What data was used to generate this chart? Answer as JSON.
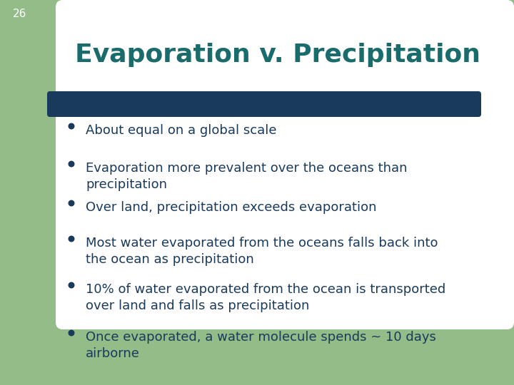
{
  "slide_number": "26",
  "title": "Evaporation v. Precipitation",
  "title_color": "#1a6b6b",
  "title_fontsize": 26,
  "bar_color": "#1a3a5c",
  "bullet_color": "#1a3a5c",
  "bullet_fontsize": 13,
  "background_color": "#ffffff",
  "left_panel_color": "#93bc88",
  "slide_number_color": "#ffffff",
  "slide_number_fontsize": 11,
  "bullet_points": [
    "About equal on a global scale",
    "Evaporation more prevalent over the oceans than\nprecipitation",
    "Over land, precipitation exceeds evaporation",
    "Most water evaporated from the oceans falls back into\nthe ocean as precipitation",
    "10% of water evaporated from the ocean is transported\nover land and falls as precipitation",
    "Once evaporated, a water molecule spends ~ 10 days\nairborne"
  ]
}
